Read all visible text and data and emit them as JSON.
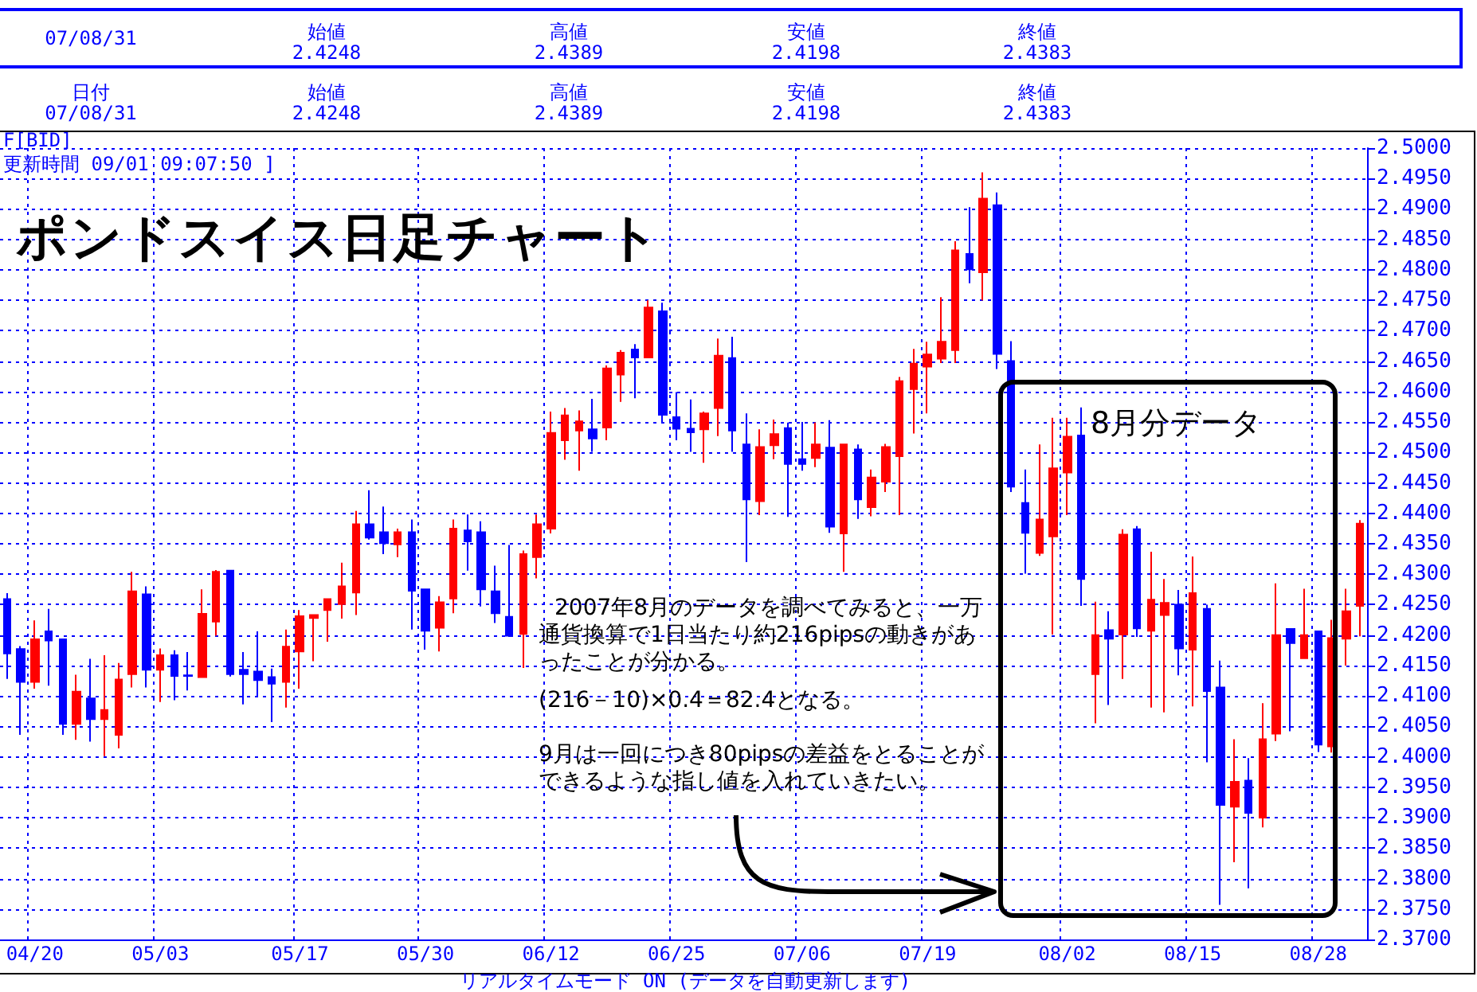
{
  "chart_data": {
    "type": "candlestick",
    "title": "ポンドスイス日足チャート",
    "annotations": [
      "07/08/31",
      "始値\n2.4248",
      "高値\n2.4389",
      "安値\n2.4198",
      "終値\n2.4383",
      "日付\n07/08/31",
      "始値\n2.4248",
      "高値\n2.4389",
      "安値\n2.4198",
      "終値\n2.4383",
      "F[BID]",
      "更新時間 09/01 09:07:50 ]",
      "8月分データ",
      "2007年8月のデータを調べてみると、一万通貨換算で1日当たり約216pipsの動きがあったことが分かる。",
      "(216－10)×0.4＝82.4となる。",
      "9月は一回につき80pipsの差益をとることができるような指し値を入れていきたい。",
      "リアルタイムモード ON (データを自動更新します)"
    ],
    "categories": [
      null,
      null,
      "04/20",
      null,
      null,
      null,
      null,
      null,
      null,
      null,
      null,
      "05/03",
      null,
      null,
      null,
      null,
      null,
      null,
      null,
      null,
      null,
      "05/17",
      null,
      null,
      null,
      null,
      null,
      null,
      null,
      null,
      "05/30",
      null,
      null,
      null,
      null,
      null,
      null,
      null,
      null,
      "06/12",
      null,
      null,
      null,
      null,
      null,
      null,
      null,
      null,
      "06/25",
      null,
      null,
      null,
      null,
      null,
      null,
      null,
      null,
      "07/06",
      null,
      null,
      null,
      null,
      null,
      null,
      null,
      null,
      "07/19",
      null,
      null,
      null,
      null,
      null,
      null,
      null,
      null,
      null,
      "08/02",
      null,
      null,
      null,
      null,
      null,
      null,
      null,
      null,
      "08/15",
      null,
      null,
      null,
      null,
      null,
      null,
      null,
      null,
      "08/28",
      null,
      null,
      null
    ],
    "ohlc": [
      [
        2.4259,
        2.4269,
        2.4128,
        2.417
      ],
      [
        2.4177,
        2.4182,
        2.4036,
        2.4123
      ],
      [
        2.4123,
        2.4224,
        2.4112,
        2.4193
      ],
      [
        2.4206,
        2.4243,
        2.4117,
        2.4191
      ],
      [
        2.4193,
        2.4193,
        2.4036,
        2.4054
      ],
      [
        2.4054,
        2.4135,
        2.4028,
        2.4107
      ],
      [
        2.4096,
        2.4161,
        2.4025,
        2.4062
      ],
      [
        2.4062,
        2.4167,
        2.4001,
        2.4077
      ],
      [
        2.4036,
        2.4154,
        2.4014,
        2.4127
      ],
      [
        2.4136,
        2.4304,
        2.4114,
        2.4272
      ],
      [
        2.4267,
        2.428,
        2.4114,
        2.4143
      ],
      [
        2.4143,
        2.4178,
        2.409,
        2.4167
      ],
      [
        2.4167,
        2.4175,
        2.4093,
        2.4133
      ],
      [
        2.4134,
        2.4172,
        2.4109,
        2.4133
      ],
      [
        2.4131,
        2.4275,
        2.4131,
        2.4235
      ],
      [
        2.4222,
        2.4307,
        2.4199,
        2.4304
      ],
      [
        2.4306,
        2.4306,
        2.4132,
        2.4136
      ],
      [
        2.4143,
        2.4172,
        2.4086,
        2.4136
      ],
      [
        2.414,
        2.4206,
        2.4099,
        2.4126
      ],
      [
        2.4131,
        2.4145,
        2.4057,
        2.412
      ],
      [
        2.4123,
        2.4209,
        2.4081,
        2.4181
      ],
      [
        2.4173,
        2.4241,
        2.4112,
        2.4231
      ],
      [
        2.4228,
        2.4233,
        2.4157,
        2.4233
      ],
      [
        2.4241,
        2.4259,
        2.4189,
        2.4259
      ],
      [
        2.4251,
        2.4319,
        2.4227,
        2.428
      ],
      [
        2.427,
        2.4404,
        2.4233,
        2.4382
      ],
      [
        2.4382,
        2.4438,
        2.4357,
        2.436
      ],
      [
        2.4369,
        2.4411,
        2.4333,
        2.4351
      ],
      [
        2.4349,
        2.4375,
        2.4328,
        2.4369
      ],
      [
        2.4369,
        2.439,
        2.4209,
        2.4273
      ],
      [
        2.4275,
        2.4275,
        2.4176,
        2.4207
      ],
      [
        2.4212,
        2.4264,
        2.4173,
        2.4254
      ],
      [
        2.426,
        2.439,
        2.4236,
        2.4375
      ],
      [
        2.4372,
        2.4398,
        2.4306,
        2.4354
      ],
      [
        2.4369,
        2.4387,
        2.4247,
        2.4275
      ],
      [
        2.4272,
        2.4314,
        2.422,
        2.4236
      ],
      [
        2.423,
        2.4348,
        2.4197,
        2.4199
      ],
      [
        2.4202,
        2.4339,
        2.4146,
        2.4333
      ],
      [
        2.4328,
        2.4398,
        2.4293,
        2.4382
      ],
      [
        2.4375,
        2.4567,
        2.4367,
        2.4532
      ],
      [
        2.452,
        2.4573,
        2.4488,
        2.4561
      ],
      [
        2.4536,
        2.4569,
        2.447,
        2.4551
      ],
      [
        2.4538,
        2.4588,
        2.4501,
        2.4523
      ],
      [
        2.4541,
        2.4643,
        2.452,
        2.4638
      ],
      [
        2.4628,
        2.4668,
        2.4583,
        2.4664
      ],
      [
        2.4669,
        2.4678,
        2.4589,
        2.4656
      ],
      [
        2.4656,
        2.475,
        2.4656,
        2.4738
      ],
      [
        2.4732,
        2.4746,
        2.455,
        2.4562
      ],
      [
        2.4558,
        2.4599,
        2.452,
        2.4539
      ],
      [
        2.4539,
        2.4587,
        2.4501,
        2.4533
      ],
      [
        2.4538,
        2.4567,
        2.4483,
        2.4564
      ],
      [
        2.4573,
        2.4687,
        2.4527,
        2.4659
      ],
      [
        2.4655,
        2.469,
        2.4501,
        2.4536
      ],
      [
        2.4513,
        2.4564,
        2.432,
        2.4423
      ],
      [
        2.442,
        2.4538,
        2.4397,
        2.4509
      ],
      [
        2.4512,
        2.4554,
        2.4489,
        2.453
      ],
      [
        2.454,
        2.4549,
        2.4394,
        2.4481
      ],
      [
        2.4489,
        2.455,
        2.447,
        2.4481
      ],
      [
        2.4491,
        2.4549,
        2.4476,
        2.4513
      ],
      [
        2.4508,
        2.4553,
        2.4368,
        2.4378
      ],
      [
        2.4367,
        2.4513,
        2.4304,
        2.4513
      ],
      [
        2.4505,
        2.4513,
        2.4391,
        2.4423
      ],
      [
        2.441,
        2.4472,
        2.4395,
        2.4459
      ],
      [
        2.4452,
        2.4514,
        2.4435,
        2.4509
      ],
      [
        2.4494,
        2.4624,
        2.4397,
        2.4617
      ],
      [
        2.4604,
        2.467,
        2.4531,
        2.4646
      ],
      [
        2.4641,
        2.4682,
        2.4564,
        2.4661
      ],
      [
        2.4654,
        2.4755,
        2.4647,
        2.4682
      ],
      [
        2.4668,
        2.4847,
        2.4647,
        2.4832
      ],
      [
        2.4826,
        2.4903,
        2.4778,
        2.4801
      ],
      [
        2.4796,
        2.496,
        2.475,
        2.4917
      ],
      [
        2.4906,
        2.4927,
        2.4637,
        2.4662
      ],
      [
        2.465,
        2.4683,
        2.4435,
        2.4444
      ],
      [
        2.4417,
        2.4472,
        2.4301,
        2.4368
      ],
      [
        2.4335,
        2.4513,
        2.433,
        2.439
      ],
      [
        2.4362,
        2.4557,
        2.4201,
        2.4474
      ],
      [
        2.4467,
        2.4557,
        2.4397,
        2.4526
      ],
      [
        2.4528,
        2.4574,
        2.4248,
        2.4292
      ],
      [
        2.4136,
        2.4255,
        2.4055,
        2.42
      ],
      [
        2.4208,
        2.4239,
        2.4085,
        2.4194
      ],
      [
        2.4201,
        2.4374,
        2.4128,
        2.4365
      ],
      [
        2.4374,
        2.4379,
        2.4197,
        2.4211
      ],
      [
        2.4207,
        2.4337,
        2.4081,
        2.4258
      ],
      [
        2.4233,
        2.4292,
        2.4073,
        2.4253
      ],
      [
        2.425,
        2.4274,
        2.4134,
        2.4178
      ],
      [
        2.4176,
        2.4329,
        2.4083,
        2.4269
      ],
      [
        2.4243,
        2.425,
        2.3991,
        2.4108
      ],
      [
        2.4114,
        2.4158,
        2.3757,
        2.3921
      ],
      [
        2.3918,
        2.4029,
        2.3827,
        2.3959
      ],
      [
        2.3961,
        2.3998,
        2.3784,
        2.3908
      ],
      [
        2.39,
        2.4088,
        2.3884,
        2.4029
      ],
      [
        2.4038,
        2.4285,
        2.4026,
        2.42
      ],
      [
        2.421,
        2.421,
        2.4042,
        2.4187
      ],
      [
        2.4162,
        2.4276,
        2.4162,
        2.42
      ],
      [
        2.4206,
        2.4206,
        2.4008,
        2.402
      ],
      [
        2.4017,
        2.4225,
        2.4007,
        2.4195
      ],
      [
        2.4194,
        2.4276,
        2.415,
        2.4239
      ],
      [
        2.4248,
        2.4389,
        2.4198,
        2.4383
      ]
    ],
    "colors": [
      "#0000ff",
      "#0000ff",
      "#ff0000",
      "#0000ff",
      "#0000ff",
      "#ff0000",
      "#0000ff",
      "#ff0000",
      "#ff0000",
      "#ff0000",
      "#0000ff",
      "#ff0000",
      "#0000ff",
      "#0000ff",
      "#ff0000",
      "#ff0000",
      "#0000ff",
      "#0000ff",
      "#0000ff",
      "#0000ff",
      "#ff0000",
      "#ff0000",
      "#ff0000",
      "#ff0000",
      "#ff0000",
      "#ff0000",
      "#0000ff",
      "#0000ff",
      "#ff0000",
      "#0000ff",
      "#0000ff",
      "#ff0000",
      "#ff0000",
      "#0000ff",
      "#0000ff",
      "#0000ff",
      "#0000ff",
      "#ff0000",
      "#ff0000",
      "#ff0000",
      "#ff0000",
      "#ff0000",
      "#0000ff",
      "#ff0000",
      "#ff0000",
      "#0000ff",
      "#ff0000",
      "#0000ff",
      "#0000ff",
      "#0000ff",
      "#ff0000",
      "#ff0000",
      "#0000ff",
      "#0000ff",
      "#ff0000",
      "#ff0000",
      "#0000ff",
      "#0000ff",
      "#ff0000",
      "#0000ff",
      "#ff0000",
      "#0000ff",
      "#ff0000",
      "#ff0000",
      "#ff0000",
      "#ff0000",
      "#ff0000",
      "#ff0000",
      "#ff0000",
      "#0000ff",
      "#ff0000",
      "#0000ff",
      "#0000ff",
      "#0000ff",
      "#ff0000",
      "#ff0000",
      "#ff0000",
      "#0000ff",
      "#ff0000",
      "#0000ff",
      "#ff0000",
      "#0000ff",
      "#ff0000",
      "#ff0000",
      "#0000ff",
      "#ff0000",
      "#0000ff",
      "#0000ff",
      "#ff0000",
      "#0000ff",
      "#ff0000",
      "#ff0000",
      "#0000ff",
      "#ff0000",
      "#0000ff",
      "#ff0000",
      "#ff0000",
      "#ff0000"
    ],
    "ylim": [
      2.37,
      2.5
    ],
    "yticks": [
      {
        "value": 2.37,
        "label": "2.3700"
      },
      {
        "value": 2.375,
        "label": "2.3750"
      },
      {
        "value": 2.38,
        "label": "2.3800"
      },
      {
        "value": 2.385,
        "label": "2.3850"
      },
      {
        "value": 2.39,
        "label": "2.3900"
      },
      {
        "value": 2.395,
        "label": "2.3950"
      },
      {
        "value": 2.4,
        "label": "2.4000"
      },
      {
        "value": 2.405,
        "label": "2.4050"
      },
      {
        "value": 2.41,
        "label": "2.4100"
      },
      {
        "value": 2.415,
        "label": "2.4150"
      },
      {
        "value": 2.42,
        "label": "2.4200"
      },
      {
        "value": 2.425,
        "label": "2.4250"
      },
      {
        "value": 2.43,
        "label": "2.4300"
      },
      {
        "value": 2.435,
        "label": "2.4350"
      },
      {
        "value": 2.44,
        "label": "2.4400"
      },
      {
        "value": 2.445,
        "label": "2.4450"
      },
      {
        "value": 2.45,
        "label": "2.4500"
      },
      {
        "value": 2.455,
        "label": "2.4550"
      },
      {
        "value": 2.46,
        "label": "2.4600"
      },
      {
        "value": 2.465,
        "label": "2.4650"
      },
      {
        "value": 2.47,
        "label": "2.4700"
      },
      {
        "value": 2.475,
        "label": "2.4750"
      },
      {
        "value": 2.48,
        "label": "2.4800"
      },
      {
        "value": 2.485,
        "label": "2.4850"
      },
      {
        "value": 2.49,
        "label": "2.4900"
      },
      {
        "value": 2.495,
        "label": "2.4950"
      },
      {
        "value": 2.5,
        "label": "2.5000"
      }
    ],
    "grid": true
  }
}
